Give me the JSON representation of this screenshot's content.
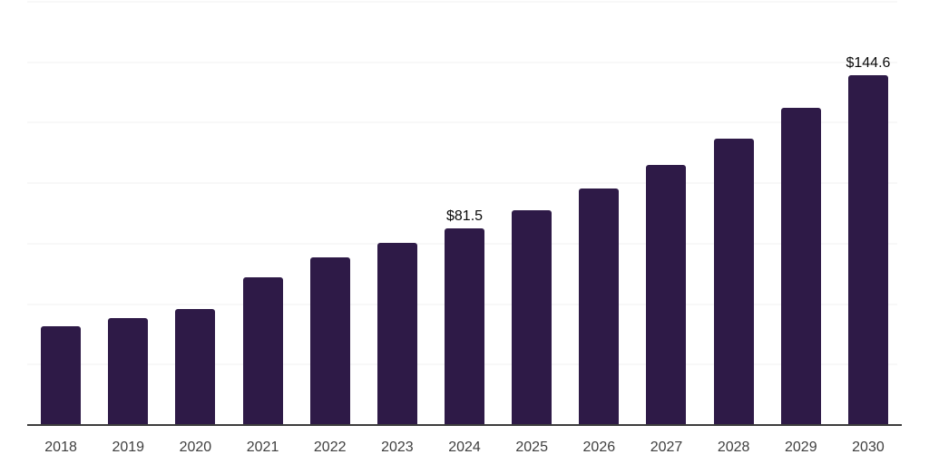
{
  "chart_data": {
    "type": "bar",
    "title": "",
    "xlabel": "",
    "ylabel": "",
    "categories": [
      "2018",
      "2019",
      "2020",
      "2021",
      "2022",
      "2023",
      "2024",
      "2025",
      "2026",
      "2027",
      "2028",
      "2029",
      "2030"
    ],
    "values": [
      40.7,
      44.3,
      48.0,
      61.2,
      69.2,
      75.3,
      81.5,
      88.7,
      97.7,
      107.5,
      118.3,
      131.2,
      144.6
    ],
    "data_labels": {
      "2024": "$81.5",
      "2030": "$144.6"
    },
    "ylim": [
      0,
      175
    ],
    "gridline_step": 25,
    "grid": "horizontal",
    "y_tick_labels_visible": false,
    "legend": "none",
    "colors": {
      "bar": "#2E1A47",
      "axis_line": "#3D3D3D",
      "gridline": "#F2F2F2",
      "tick_label": "#3F3F3F",
      "data_label": "#0A0A0A",
      "background": "#FFFFFF"
    }
  }
}
